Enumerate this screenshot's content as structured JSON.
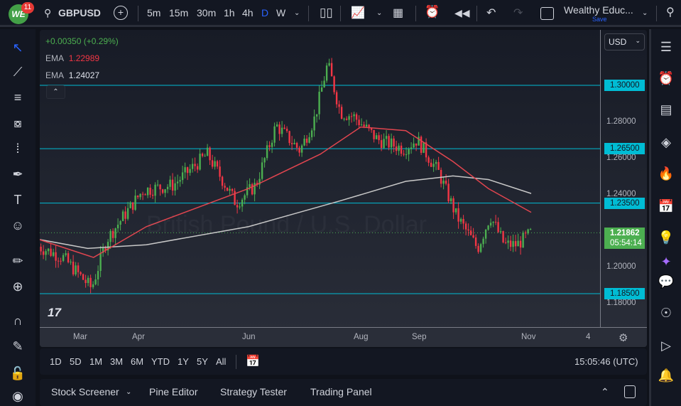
{
  "topbar": {
    "notifications": "11",
    "logo": "WE",
    "symbol": "GBPUSD",
    "intervals": [
      "5m",
      "15m",
      "30m",
      "1h",
      "4h",
      "D",
      "W"
    ],
    "active_interval": "D",
    "layout_name": "Wealthy Educ...",
    "save_label": "Save"
  },
  "legend": {
    "change": "+0.00350 (+0.29%)",
    "ema1_label": "EMA",
    "ema1_value": "1.22989",
    "ema2_label": "EMA",
    "ema2_value": "1.24027"
  },
  "price_axis": {
    "currency": "USD",
    "ticks": [
      "1.28000",
      "1.26000",
      "1.24000",
      "1.20000",
      "1.18000"
    ],
    "levels": [
      "1.30000",
      "1.26500",
      "1.23500",
      "1.18500"
    ],
    "last_price": "1.21862",
    "countdown": "05:54:14"
  },
  "time_axis": {
    "ticks": [
      "Mar",
      "Apr",
      "Jun",
      "Aug",
      "Sep",
      "Nov",
      "4"
    ]
  },
  "watermark": "British Pound / U.S. Dollar",
  "range_bar": {
    "ranges": [
      "1D",
      "5D",
      "1M",
      "3M",
      "6M",
      "YTD",
      "1Y",
      "5Y",
      "All"
    ],
    "clock": "15:05:46 (UTC)"
  },
  "bottom_panel": {
    "tabs": [
      "Stock Screener",
      "Pine Editor",
      "Strategy Tester",
      "Trading Panel"
    ]
  },
  "colors": {
    "up": "#4caf50",
    "down": "#f23645",
    "level": "#00bcd4",
    "ema_fast": "#e0454f",
    "ema_slow": "#c8c8c8",
    "accent": "#2962ff"
  },
  "chart_data": {
    "type": "candlestick",
    "symbol": "GBPUSD",
    "interval": "1D",
    "ylim": [
      1.17,
      1.33
    ],
    "levels": [
      1.3,
      1.265,
      1.235,
      1.185
    ],
    "price_path": [
      [
        "2023-02-07",
        1.211
      ],
      [
        "2023-02-20",
        1.205
      ],
      [
        "2023-03-07",
        1.188
      ],
      [
        "2023-03-15",
        1.215
      ],
      [
        "2023-03-24",
        1.228
      ],
      [
        "2023-04-03",
        1.242
      ],
      [
        "2023-04-20",
        1.245
      ],
      [
        "2023-05-09",
        1.262
      ],
      [
        "2023-05-25",
        1.235
      ],
      [
        "2023-06-05",
        1.245
      ],
      [
        "2023-06-16",
        1.278
      ],
      [
        "2023-06-29",
        1.264
      ],
      [
        "2023-07-07",
        1.282
      ],
      [
        "2023-07-14",
        1.312
      ],
      [
        "2023-07-21",
        1.285
      ],
      [
        "2023-07-28",
        1.283
      ],
      [
        "2023-08-10",
        1.27
      ],
      [
        "2023-08-24",
        1.265
      ],
      [
        "2023-08-31",
        1.27
      ],
      [
        "2023-09-12",
        1.252
      ],
      [
        "2023-09-22",
        1.228
      ],
      [
        "2023-10-04",
        1.21
      ],
      [
        "2023-10-11",
        1.228
      ],
      [
        "2023-10-19",
        1.212
      ],
      [
        "2023-10-26",
        1.212
      ],
      [
        "2023-11-03",
        1.2186
      ]
    ],
    "ema_fast": [
      [
        "2023-02-07",
        1.215
      ],
      [
        "2023-03-08",
        1.205
      ],
      [
        "2023-04-05",
        1.222
      ],
      [
        "2023-06-01",
        1.243
      ],
      [
        "2023-07-10",
        1.262
      ],
      [
        "2023-08-01",
        1.277
      ],
      [
        "2023-08-25",
        1.275
      ],
      [
        "2023-09-20",
        1.258
      ],
      [
        "2023-10-10",
        1.243
      ],
      [
        "2023-11-03",
        1.2299
      ]
    ],
    "ema_slow": [
      [
        "2023-02-07",
        1.215
      ],
      [
        "2023-03-05",
        1.21
      ],
      [
        "2023-04-05",
        1.212
      ],
      [
        "2023-06-01",
        1.222
      ],
      [
        "2023-07-20",
        1.236
      ],
      [
        "2023-08-25",
        1.247
      ],
      [
        "2023-09-20",
        1.25
      ],
      [
        "2023-10-10",
        1.248
      ],
      [
        "2023-11-03",
        1.2403
      ]
    ]
  }
}
